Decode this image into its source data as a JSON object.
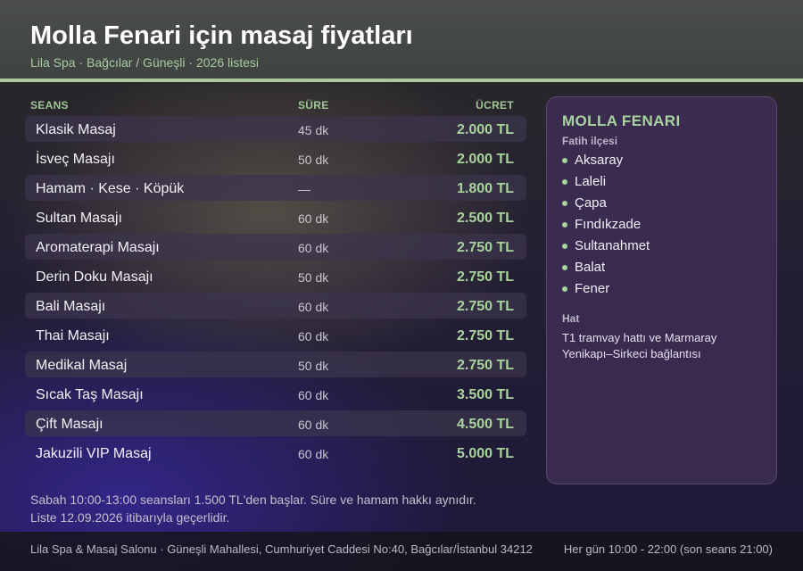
{
  "header": {
    "title": "Molla Fenari için masaj fiyatları",
    "subtitle": "Lila Spa · Bağcılar / Güneşli · 2026 listesi"
  },
  "table": {
    "columns": {
      "name": "SEANS",
      "duration": "SÜRE",
      "price": "ÜCRET"
    },
    "rows": [
      {
        "name": "Klasik Masaj",
        "duration": "45 dk",
        "price": "2.000 TL"
      },
      {
        "name": "İsveç Masajı",
        "duration": "50 dk",
        "price": "2.000 TL"
      },
      {
        "name": "Hamam · Kese · Köpük",
        "duration": "—",
        "price": "1.800 TL"
      },
      {
        "name": "Sultan Masajı",
        "duration": "60 dk",
        "price": "2.500 TL"
      },
      {
        "name": "Aromaterapi Masajı",
        "duration": "60 dk",
        "price": "2.750 TL"
      },
      {
        "name": "Derin Doku Masajı",
        "duration": "50 dk",
        "price": "2.750 TL"
      },
      {
        "name": "Bali Masajı",
        "duration": "60 dk",
        "price": "2.750 TL"
      },
      {
        "name": "Thai Masajı",
        "duration": "60 dk",
        "price": "2.750 TL"
      },
      {
        "name": "Medikal Masaj",
        "duration": "50 dk",
        "price": "2.750 TL"
      },
      {
        "name": "Sıcak Taş Masajı",
        "duration": "60 dk",
        "price": "3.500 TL"
      },
      {
        "name": "Çift Masajı",
        "duration": "60 dk",
        "price": "4.500 TL"
      },
      {
        "name": "Jakuzili VIP Masaj",
        "duration": "60 dk",
        "price": "5.000 TL"
      }
    ]
  },
  "panel": {
    "title": "MOLLA FENARI",
    "subtitle": "Fatih ilçesi",
    "items": [
      "Aksaray",
      "Laleli",
      "Çapa",
      "Fındıkzade",
      "Sultanahmet",
      "Balat",
      "Fener"
    ],
    "hat_label": "Hat",
    "hat_text": "T1 tramvay hattı ve Marmaray Yenikapı–Sirkeci bağlantısı"
  },
  "notes": {
    "line1": "Sabah 10:00-13:00 seansları 1.500 TL'den başlar. Süre ve hamam hakkı aynıdır.",
    "line2": "Liste 12.09.2026 itibarıyla geçerlidir."
  },
  "footer": {
    "address": "Lila Spa & Masaj Salonu · Güneşli Mahallesi, Cumhuriyet Caddesi No:40, Bağcılar/İstanbul 34212",
    "hours": "Her gün 10:00 - 22:00 (son seans 21:00)"
  },
  "colors": {
    "accent": "#a9d39e",
    "header_bg": "#434745",
    "panel_bg": "#3e2c54"
  }
}
